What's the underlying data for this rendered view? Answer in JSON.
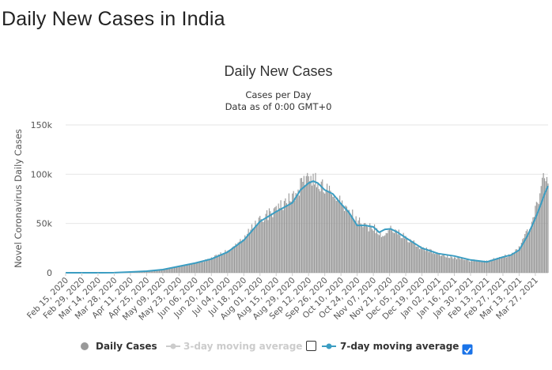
{
  "page": {
    "title": "Daily New Cases in India"
  },
  "chart_data": {
    "type": "bar",
    "title": "Daily New Cases",
    "subtitle_lines": [
      "Cases per Day",
      "Data as of 0:00 GMT+0"
    ],
    "xlabel": "",
    "ylabel": "Novel Coronavirus Daily Cases",
    "x_start": "2020-02-15",
    "x_end": "2021-04-07",
    "ylim": [
      0,
      150000
    ],
    "y_ticks": [
      0,
      50000,
      100000,
      150000
    ],
    "y_tick_labels": [
      "0",
      "50k",
      "100k",
      "150k"
    ],
    "x_tick_dates": [
      "2020-02-15",
      "2020-02-29",
      "2020-03-14",
      "2020-03-28",
      "2020-04-11",
      "2020-04-25",
      "2020-05-09",
      "2020-05-23",
      "2020-06-06",
      "2020-06-20",
      "2020-07-04",
      "2020-07-18",
      "2020-08-01",
      "2020-08-15",
      "2020-08-29",
      "2020-09-12",
      "2020-09-26",
      "2020-10-10",
      "2020-10-24",
      "2020-11-07",
      "2020-11-21",
      "2020-12-05",
      "2020-12-19",
      "2021-01-02",
      "2021-01-16",
      "2021-01-30",
      "2021-02-13",
      "2021-02-27",
      "2021-03-13",
      "2021-03-27"
    ],
    "x_tick_labels": [
      "Feb 15, 2020",
      "Feb 29, 2020",
      "Mar 14, 2020",
      "Mar 28, 2020",
      "Apr 11, 2020",
      "Apr 25, 2020",
      "May 09, 2020",
      "May 23, 2020",
      "Jun 06, 2020",
      "Jun 20, 2020",
      "Jul 04, 2020",
      "Jul 18, 2020",
      "Aug 01, 2020",
      "Aug 15, 2020",
      "Aug 29, 2020",
      "Sep 12, 2020",
      "Sep 26, 2020",
      "Oct 10, 2020",
      "Oct 24, 2020",
      "Nov 07, 2020",
      "Nov 21, 2020",
      "Dec 05, 2020",
      "Dec 19, 2020",
      "Jan 02, 2021",
      "Jan 16, 2021",
      "Jan 30, 2021",
      "Feb 13, 2021",
      "Feb 27, 2021",
      "Mar 13, 2021",
      "Mar 27, 2021"
    ],
    "grid": true,
    "legend_position": "bottom",
    "series": [
      {
        "name": "Daily Cases",
        "type": "bar",
        "color": "#999999",
        "visible": true,
        "points": [
          [
            "2020-02-15",
            0
          ],
          [
            "2020-03-01",
            0
          ],
          [
            "2020-03-15",
            20
          ],
          [
            "2020-03-28",
            150
          ],
          [
            "2020-04-11",
            900
          ],
          [
            "2020-04-25",
            1700
          ],
          [
            "2020-05-09",
            3300
          ],
          [
            "2020-05-23",
            6600
          ],
          [
            "2020-06-06",
            9900
          ],
          [
            "2020-06-20",
            14500
          ],
          [
            "2020-07-04",
            22500
          ],
          [
            "2020-07-18",
            35000
          ],
          [
            "2020-08-01",
            55000
          ],
          [
            "2020-08-15",
            63500
          ],
          [
            "2020-08-29",
            77000
          ],
          [
            "2020-09-05",
            88000
          ],
          [
            "2020-09-12",
            94000
          ],
          [
            "2020-09-16",
            97500
          ],
          [
            "2020-09-19",
            92500
          ],
          [
            "2020-09-26",
            85000
          ],
          [
            "2020-10-10",
            72000
          ],
          [
            "2020-10-24",
            53000
          ],
          [
            "2020-11-01",
            46500
          ],
          [
            "2020-11-07",
            46000
          ],
          [
            "2020-11-14",
            38000
          ],
          [
            "2020-11-21",
            44000
          ],
          [
            "2020-11-28",
            41000
          ],
          [
            "2020-12-05",
            36000
          ],
          [
            "2020-12-19",
            25000
          ],
          [
            "2021-01-02",
            19000
          ],
          [
            "2021-01-16",
            15500
          ],
          [
            "2021-01-30",
            12500
          ],
          [
            "2021-02-13",
            11500
          ],
          [
            "2021-02-20",
            14000
          ],
          [
            "2021-02-27",
            16500
          ],
          [
            "2021-03-06",
            18500
          ],
          [
            "2021-03-13",
            25000
          ],
          [
            "2021-03-20",
            41000
          ],
          [
            "2021-03-27",
            62000
          ],
          [
            "2021-04-01",
            81000
          ],
          [
            "2021-04-04",
            103000
          ],
          [
            "2021-04-07",
            96000
          ]
        ]
      },
      {
        "name": "3-day moving average",
        "type": "line",
        "color": "#cccccc",
        "visible": false,
        "points": []
      },
      {
        "name": "7-day moving average",
        "type": "line",
        "color": "#3b9dc2",
        "visible": true,
        "points": [
          [
            "2020-02-15",
            0
          ],
          [
            "2020-03-01",
            0
          ],
          [
            "2020-03-15",
            10
          ],
          [
            "2020-03-28",
            120
          ],
          [
            "2020-04-11",
            800
          ],
          [
            "2020-04-25",
            1600
          ],
          [
            "2020-05-09",
            3200
          ],
          [
            "2020-05-23",
            6500
          ],
          [
            "2020-06-06",
            9800
          ],
          [
            "2020-06-20",
            14000
          ],
          [
            "2020-07-04",
            21000
          ],
          [
            "2020-07-18",
            33000
          ],
          [
            "2020-08-01",
            52000
          ],
          [
            "2020-08-15",
            62000
          ],
          [
            "2020-08-29",
            71000
          ],
          [
            "2020-09-05",
            84000
          ],
          [
            "2020-09-12",
            91000
          ],
          [
            "2020-09-16",
            93000
          ],
          [
            "2020-09-20",
            91000
          ],
          [
            "2020-09-26",
            84000
          ],
          [
            "2020-10-03",
            80000
          ],
          [
            "2020-10-10",
            70000
          ],
          [
            "2020-10-17",
            61000
          ],
          [
            "2020-10-24",
            48000
          ],
          [
            "2020-10-31",
            48000
          ],
          [
            "2020-11-07",
            46500
          ],
          [
            "2020-11-12",
            41000
          ],
          [
            "2020-11-17",
            44000
          ],
          [
            "2020-11-22",
            44500
          ],
          [
            "2020-11-28",
            41000
          ],
          [
            "2020-12-05",
            35500
          ],
          [
            "2020-12-19",
            25000
          ],
          [
            "2021-01-02",
            19500
          ],
          [
            "2021-01-16",
            17000
          ],
          [
            "2021-01-30",
            13000
          ],
          [
            "2021-02-13",
            11000
          ],
          [
            "2021-02-20",
            13500
          ],
          [
            "2021-02-27",
            16000
          ],
          [
            "2021-03-06",
            18000
          ],
          [
            "2021-03-13",
            23000
          ],
          [
            "2021-03-20",
            37000
          ],
          [
            "2021-03-27",
            55000
          ],
          [
            "2021-04-01",
            70000
          ],
          [
            "2021-04-04",
            80000
          ],
          [
            "2021-04-07",
            88000
          ]
        ]
      }
    ],
    "legend": [
      {
        "label": "Daily Cases",
        "marker": "circle",
        "active": true
      },
      {
        "label": "3-day moving average",
        "marker": "line-dot",
        "active": false,
        "checkbox_checked": false
      },
      {
        "label": "7-day moving average",
        "marker": "line-dot",
        "active": true,
        "checkbox_checked": true
      }
    ]
  },
  "colors": {
    "bar": "#999999",
    "line": "#3b9dc2",
    "grid": "#e6e6e6",
    "checkbox": "#1a73e8"
  }
}
